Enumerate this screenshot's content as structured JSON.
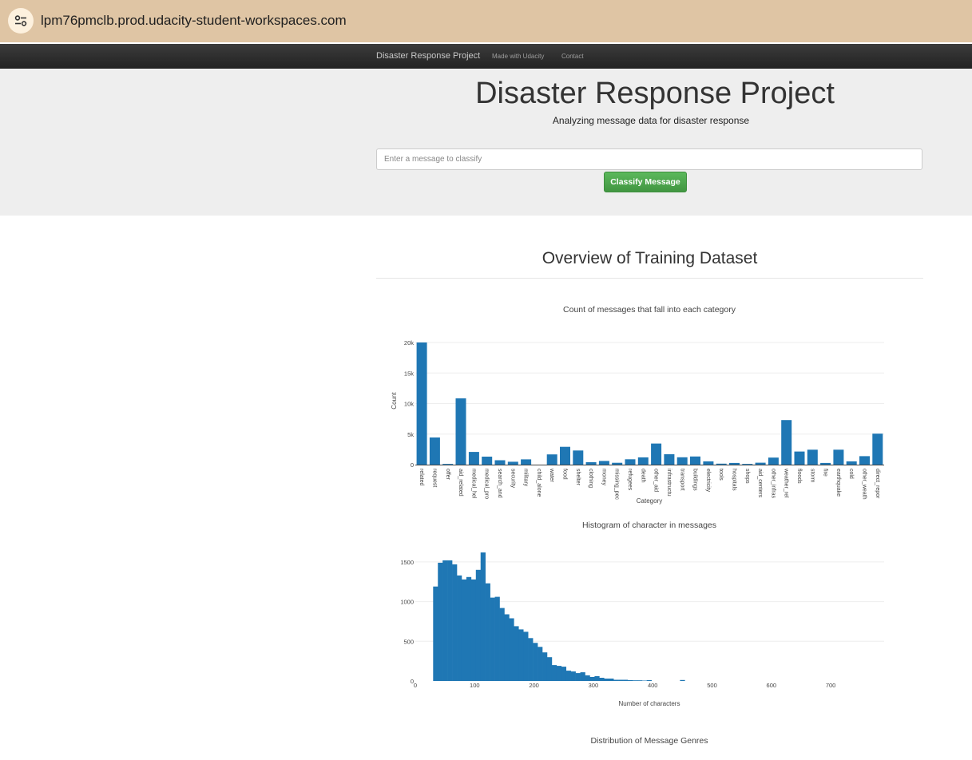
{
  "browser": {
    "url": "lpm76pmclb.prod.udacity-student-workspaces.com"
  },
  "navbar": {
    "brand": "Disaster Response Project",
    "links": [
      "Made with Udacity",
      "Contact"
    ]
  },
  "jumbotron": {
    "title": "Disaster Response Project",
    "subtitle": "Analyzing message data for disaster response",
    "input_placeholder": "Enter a message to classify",
    "input_value": "",
    "button_label": "Classify Message"
  },
  "overview_heading": "Overview of Training Dataset",
  "colors": {
    "bar": "#1f77b4",
    "green_button": "#4cae4c",
    "navbar": "#222222",
    "jumbotron": "#eeeeee"
  },
  "chart_data": [
    {
      "type": "bar",
      "title": "Count of messages that fall into each category",
      "xlabel": "Category",
      "ylabel": "Count",
      "ylim": [
        0,
        20000
      ],
      "ytick_values": [
        0,
        5000,
        10000,
        15000,
        20000
      ],
      "ytick_labels": [
        "0",
        "5k",
        "10k",
        "15k",
        "20k"
      ],
      "grid": true,
      "categories": [
        "related",
        "request",
        "offer",
        "aid_related",
        "medical_hel",
        "medical_pro",
        "search_and",
        "security",
        "military",
        "child_alone",
        "water",
        "food",
        "shelter",
        "clothing",
        "money",
        "missing_pec",
        "refugees",
        "death",
        "other_aid",
        "infrastructu",
        "transport",
        "buildings",
        "electricity",
        "tools",
        "hospitals",
        "shops",
        "aid_centers",
        "other_infras",
        "weather_rel",
        "floods",
        "storm",
        "fire",
        "earthquake",
        "cold",
        "other_weath",
        "direct_repor"
      ],
      "values": [
        20000,
        4450,
        120,
        10850,
        2080,
        1310,
        720,
        470,
        860,
        0,
        1670,
        2920,
        2310,
        400,
        600,
        300,
        870,
        1190,
        3450,
        1700,
        1200,
        1330,
        530,
        160,
        280,
        120,
        310,
        1150,
        7300,
        2150,
        2440,
        280,
        2450,
        530,
        1380,
        5070
      ]
    },
    {
      "type": "bar",
      "title": "Histogram of character in messages",
      "xlabel": "Number of characters",
      "ylabel": "",
      "xlim": [
        0,
        790
      ],
      "ylim": [
        0,
        1650
      ],
      "xtick_labels": [
        "0",
        "100",
        "200",
        "300",
        "400",
        "500",
        "600",
        "700"
      ],
      "ytick_labels": [
        "0",
        "500",
        "1000",
        "1500"
      ],
      "grid": true,
      "bin_width": 8,
      "bin_start": 30,
      "values": [
        1190,
        1490,
        1520,
        1520,
        1470,
        1330,
        1280,
        1310,
        1280,
        1400,
        1620,
        1230,
        1050,
        1060,
        920,
        840,
        790,
        690,
        650,
        620,
        540,
        480,
        430,
        360,
        300,
        200,
        190,
        180,
        130,
        120,
        100,
        110,
        70,
        50,
        60,
        40,
        30,
        30,
        15,
        15,
        15,
        10,
        8,
        8,
        5,
        10,
        0,
        0,
        0,
        0,
        0,
        0,
        12
      ]
    },
    {
      "type": "pie",
      "title": "Distribution of Message Genres"
    }
  ]
}
